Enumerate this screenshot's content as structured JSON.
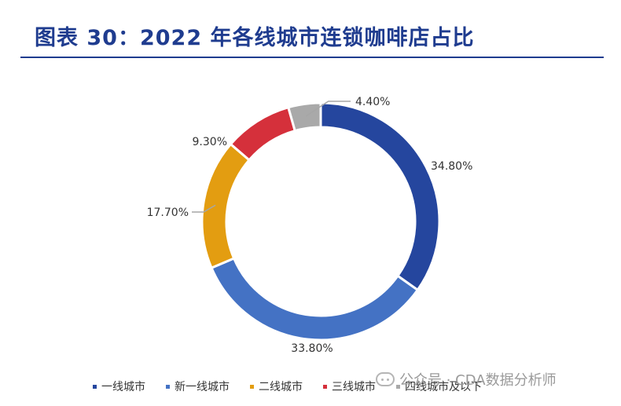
{
  "header": {
    "title": "图表 30：2022 年各线城市连锁咖啡店占比"
  },
  "chart_data": {
    "type": "pie",
    "variant": "donut",
    "categories": [
      "一线城市",
      "新一线城市",
      "二线城市",
      "三线城市",
      "四线城市及以下"
    ],
    "values": [
      34.8,
      33.8,
      17.7,
      9.3,
      4.4
    ],
    "labels": [
      "34.80%",
      "33.80%",
      "17.70%",
      "9.30%",
      "4.40%"
    ],
    "colors": [
      "#25469e",
      "#4472c4",
      "#e39d11",
      "#d5303b",
      "#a9a9a9"
    ],
    "legend_position": "bottom",
    "start": "top-clockwise"
  },
  "watermark": {
    "text": "公众号 · CDA数据分析师",
    "icon": "wechat-icon"
  }
}
